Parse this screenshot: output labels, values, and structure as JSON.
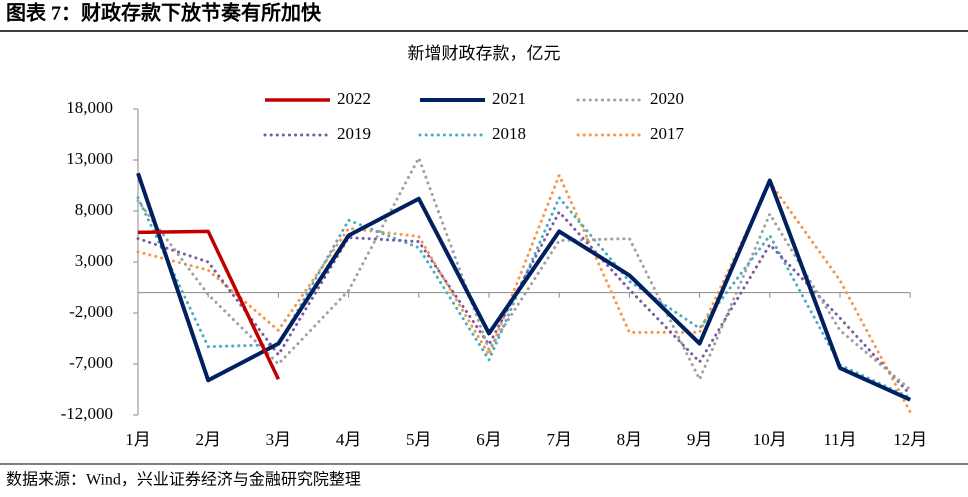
{
  "chart_data": {
    "type": "line",
    "title": "图表 7：财政存款下放节奏有所加快",
    "subtitle": "新增财政存款，亿元",
    "source": "数据来源：Wind，兴业证券经济与金融研究院整理",
    "categories": [
      "1月",
      "2月",
      "3月",
      "4月",
      "5月",
      "6月",
      "7月",
      "8月",
      "9月",
      "10月",
      "11月",
      "12月"
    ],
    "series": [
      {
        "name": "2022",
        "color": "#c00000",
        "style": "solid",
        "values": [
          5900,
          6000,
          -8500,
          null,
          null,
          null,
          null,
          null,
          null,
          null,
          null,
          null
        ]
      },
      {
        "name": "2021",
        "color": "#002060",
        "style": "solid",
        "values": [
          11700,
          -8600,
          -5000,
          5600,
          9200,
          -4000,
          6000,
          1700,
          -5000,
          11000,
          -7400,
          -10500
        ]
      },
      {
        "name": "2020",
        "color": "#a0a0a0",
        "style": "dotted",
        "values": [
          9000,
          -200,
          -7000,
          200,
          13200,
          -5600,
          5100,
          5300,
          -8500,
          7700,
          -3700,
          -9500
        ]
      },
      {
        "name": "2019",
        "color": "#7a5c9e",
        "style": "dotted",
        "values": [
          5300,
          3000,
          -6100,
          5400,
          5000,
          -5100,
          7900,
          300,
          -6800,
          4700,
          -2500,
          -10000
        ]
      },
      {
        "name": "2018",
        "color": "#4bacc6",
        "style": "dotted",
        "values": [
          9300,
          -5300,
          -5100,
          7100,
          4400,
          -6600,
          9300,
          1100,
          -3500,
          5600,
          -7100,
          -10300
        ]
      },
      {
        "name": "2017",
        "color": "#f79646",
        "style": "dotted",
        "values": [
          4000,
          2200,
          -3700,
          6300,
          5500,
          -6100,
          11500,
          -3900,
          -3900,
          10800,
          1200,
          -11700
        ]
      }
    ],
    "ylim": [
      -12000,
      18000
    ],
    "yticks": [
      {
        "value": -12000,
        "label": "-12,000"
      },
      {
        "value": -7000,
        "label": "-7,000"
      },
      {
        "value": -2000,
        "label": "-2,000"
      },
      {
        "value": 3000,
        "label": "3,000"
      },
      {
        "value": 8000,
        "label": "8,000"
      },
      {
        "value": 13000,
        "label": "13,000"
      },
      {
        "value": 18000,
        "label": "18,000"
      }
    ],
    "grid": false
  }
}
